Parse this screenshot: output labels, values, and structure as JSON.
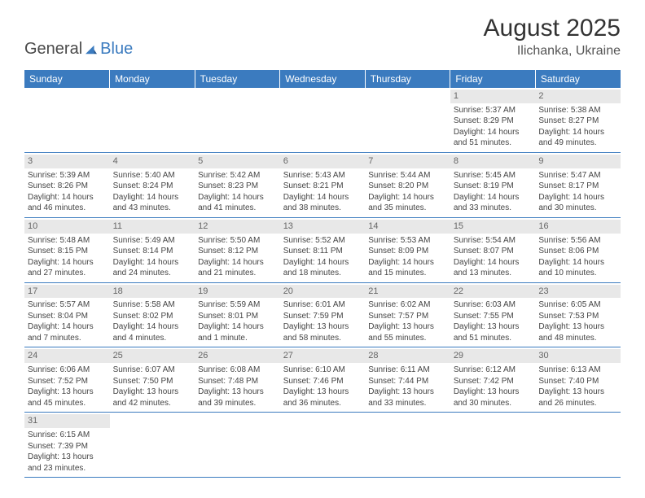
{
  "brand": {
    "part1": "General",
    "part2": "Blue"
  },
  "title": "August 2025",
  "location": "Ilichanka, Ukraine",
  "colors": {
    "header_bg": "#3b7bbf",
    "header_text": "#ffffff",
    "daynum_bg": "#e8e8e8",
    "daynum_text": "#666666",
    "border": "#3b7bbf",
    "body_text": "#444444"
  },
  "day_headers": [
    "Sunday",
    "Monday",
    "Tuesday",
    "Wednesday",
    "Thursday",
    "Friday",
    "Saturday"
  ],
  "weeks": [
    [
      null,
      null,
      null,
      null,
      null,
      {
        "n": "1",
        "sr": "Sunrise: 5:37 AM",
        "ss": "Sunset: 8:29 PM",
        "d1": "Daylight: 14 hours",
        "d2": "and 51 minutes."
      },
      {
        "n": "2",
        "sr": "Sunrise: 5:38 AM",
        "ss": "Sunset: 8:27 PM",
        "d1": "Daylight: 14 hours",
        "d2": "and 49 minutes."
      }
    ],
    [
      {
        "n": "3",
        "sr": "Sunrise: 5:39 AM",
        "ss": "Sunset: 8:26 PM",
        "d1": "Daylight: 14 hours",
        "d2": "and 46 minutes."
      },
      {
        "n": "4",
        "sr": "Sunrise: 5:40 AM",
        "ss": "Sunset: 8:24 PM",
        "d1": "Daylight: 14 hours",
        "d2": "and 43 minutes."
      },
      {
        "n": "5",
        "sr": "Sunrise: 5:42 AM",
        "ss": "Sunset: 8:23 PM",
        "d1": "Daylight: 14 hours",
        "d2": "and 41 minutes."
      },
      {
        "n": "6",
        "sr": "Sunrise: 5:43 AM",
        "ss": "Sunset: 8:21 PM",
        "d1": "Daylight: 14 hours",
        "d2": "and 38 minutes."
      },
      {
        "n": "7",
        "sr": "Sunrise: 5:44 AM",
        "ss": "Sunset: 8:20 PM",
        "d1": "Daylight: 14 hours",
        "d2": "and 35 minutes."
      },
      {
        "n": "8",
        "sr": "Sunrise: 5:45 AM",
        "ss": "Sunset: 8:19 PM",
        "d1": "Daylight: 14 hours",
        "d2": "and 33 minutes."
      },
      {
        "n": "9",
        "sr": "Sunrise: 5:47 AM",
        "ss": "Sunset: 8:17 PM",
        "d1": "Daylight: 14 hours",
        "d2": "and 30 minutes."
      }
    ],
    [
      {
        "n": "10",
        "sr": "Sunrise: 5:48 AM",
        "ss": "Sunset: 8:15 PM",
        "d1": "Daylight: 14 hours",
        "d2": "and 27 minutes."
      },
      {
        "n": "11",
        "sr": "Sunrise: 5:49 AM",
        "ss": "Sunset: 8:14 PM",
        "d1": "Daylight: 14 hours",
        "d2": "and 24 minutes."
      },
      {
        "n": "12",
        "sr": "Sunrise: 5:50 AM",
        "ss": "Sunset: 8:12 PM",
        "d1": "Daylight: 14 hours",
        "d2": "and 21 minutes."
      },
      {
        "n": "13",
        "sr": "Sunrise: 5:52 AM",
        "ss": "Sunset: 8:11 PM",
        "d1": "Daylight: 14 hours",
        "d2": "and 18 minutes."
      },
      {
        "n": "14",
        "sr": "Sunrise: 5:53 AM",
        "ss": "Sunset: 8:09 PM",
        "d1": "Daylight: 14 hours",
        "d2": "and 15 minutes."
      },
      {
        "n": "15",
        "sr": "Sunrise: 5:54 AM",
        "ss": "Sunset: 8:07 PM",
        "d1": "Daylight: 14 hours",
        "d2": "and 13 minutes."
      },
      {
        "n": "16",
        "sr": "Sunrise: 5:56 AM",
        "ss": "Sunset: 8:06 PM",
        "d1": "Daylight: 14 hours",
        "d2": "and 10 minutes."
      }
    ],
    [
      {
        "n": "17",
        "sr": "Sunrise: 5:57 AM",
        "ss": "Sunset: 8:04 PM",
        "d1": "Daylight: 14 hours",
        "d2": "and 7 minutes."
      },
      {
        "n": "18",
        "sr": "Sunrise: 5:58 AM",
        "ss": "Sunset: 8:02 PM",
        "d1": "Daylight: 14 hours",
        "d2": "and 4 minutes."
      },
      {
        "n": "19",
        "sr": "Sunrise: 5:59 AM",
        "ss": "Sunset: 8:01 PM",
        "d1": "Daylight: 14 hours",
        "d2": "and 1 minute."
      },
      {
        "n": "20",
        "sr": "Sunrise: 6:01 AM",
        "ss": "Sunset: 7:59 PM",
        "d1": "Daylight: 13 hours",
        "d2": "and 58 minutes."
      },
      {
        "n": "21",
        "sr": "Sunrise: 6:02 AM",
        "ss": "Sunset: 7:57 PM",
        "d1": "Daylight: 13 hours",
        "d2": "and 55 minutes."
      },
      {
        "n": "22",
        "sr": "Sunrise: 6:03 AM",
        "ss": "Sunset: 7:55 PM",
        "d1": "Daylight: 13 hours",
        "d2": "and 51 minutes."
      },
      {
        "n": "23",
        "sr": "Sunrise: 6:05 AM",
        "ss": "Sunset: 7:53 PM",
        "d1": "Daylight: 13 hours",
        "d2": "and 48 minutes."
      }
    ],
    [
      {
        "n": "24",
        "sr": "Sunrise: 6:06 AM",
        "ss": "Sunset: 7:52 PM",
        "d1": "Daylight: 13 hours",
        "d2": "and 45 minutes."
      },
      {
        "n": "25",
        "sr": "Sunrise: 6:07 AM",
        "ss": "Sunset: 7:50 PM",
        "d1": "Daylight: 13 hours",
        "d2": "and 42 minutes."
      },
      {
        "n": "26",
        "sr": "Sunrise: 6:08 AM",
        "ss": "Sunset: 7:48 PM",
        "d1": "Daylight: 13 hours",
        "d2": "and 39 minutes."
      },
      {
        "n": "27",
        "sr": "Sunrise: 6:10 AM",
        "ss": "Sunset: 7:46 PM",
        "d1": "Daylight: 13 hours",
        "d2": "and 36 minutes."
      },
      {
        "n": "28",
        "sr": "Sunrise: 6:11 AM",
        "ss": "Sunset: 7:44 PM",
        "d1": "Daylight: 13 hours",
        "d2": "and 33 minutes."
      },
      {
        "n": "29",
        "sr": "Sunrise: 6:12 AM",
        "ss": "Sunset: 7:42 PM",
        "d1": "Daylight: 13 hours",
        "d2": "and 30 minutes."
      },
      {
        "n": "30",
        "sr": "Sunrise: 6:13 AM",
        "ss": "Sunset: 7:40 PM",
        "d1": "Daylight: 13 hours",
        "d2": "and 26 minutes."
      }
    ],
    [
      {
        "n": "31",
        "sr": "Sunrise: 6:15 AM",
        "ss": "Sunset: 7:39 PM",
        "d1": "Daylight: 13 hours",
        "d2": "and 23 minutes."
      },
      null,
      null,
      null,
      null,
      null,
      null
    ]
  ]
}
